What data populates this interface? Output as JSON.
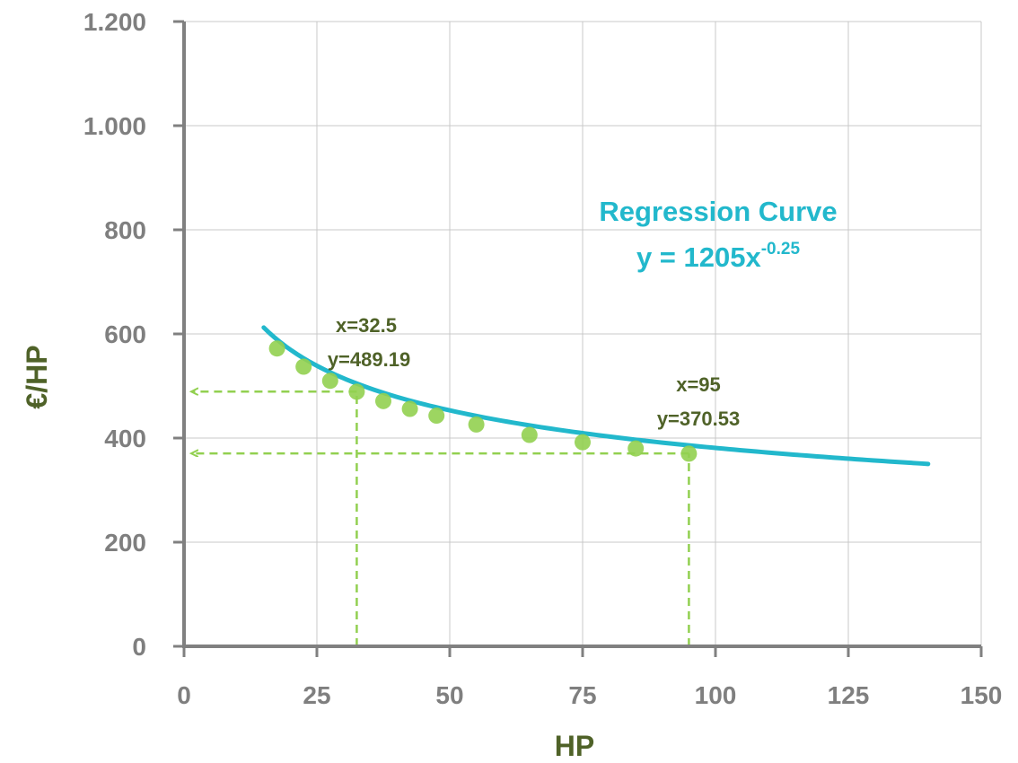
{
  "chart_data": {
    "type": "scatter",
    "title": "",
    "xlabel": "HP",
    "ylabel": "€/HP",
    "xlim": [
      0,
      150
    ],
    "ylim": [
      0,
      1200
    ],
    "x_ticks": [
      0,
      25,
      50,
      75,
      100,
      125,
      150
    ],
    "x_tick_labels": [
      "0",
      "25",
      "50",
      "75",
      "100",
      "125",
      "150"
    ],
    "y_ticks": [
      0,
      200,
      400,
      600,
      800,
      1000,
      1200
    ],
    "y_tick_labels": [
      "0",
      "200",
      "400",
      "600",
      "800",
      "1.000",
      "1.200"
    ],
    "grid": true,
    "series": [
      {
        "type": "scatter",
        "color": "#92d050",
        "x": [
          17.5,
          22.5,
          27.5,
          32.5,
          37.5,
          42.5,
          47.5,
          55,
          65,
          75,
          85,
          95
        ],
        "y": [
          572,
          537,
          510,
          489,
          471,
          456,
          443,
          426,
          406,
          392,
          380,
          370
        ]
      },
      {
        "type": "line",
        "color": "#22b8cc",
        "equation": {
          "coefficient": 1205,
          "exponent": -0.25
        },
        "x_range": [
          15,
          140
        ]
      }
    ],
    "guides": [
      {
        "x": 32.5,
        "y": 489.19,
        "label_x": "x=32.5",
        "label_y": "y=489.19"
      },
      {
        "x": 95,
        "y": 370.53,
        "label_x": "x=95",
        "label_y": "y=370.53"
      }
    ],
    "guide_color": "#92d050",
    "regression_label": {
      "title": "Regression Curve",
      "equation_prefix": "y = 1205x",
      "equation_exponent": "-0.25"
    }
  }
}
